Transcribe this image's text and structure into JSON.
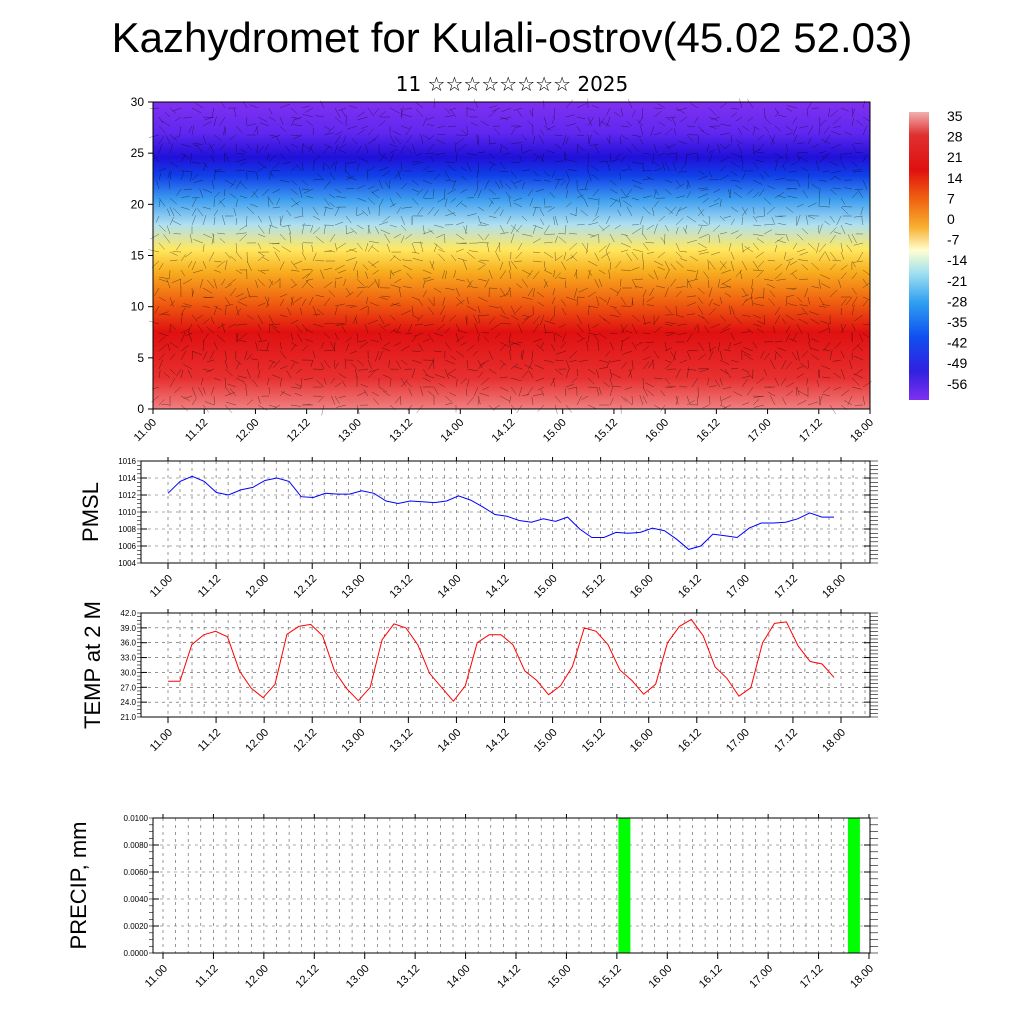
{
  "header": {
    "title": "Kazhydromet for Kulali-ostrov(45.02 52.03)",
    "subtitle": "11 ☆☆☆☆☆☆☆☆ 2025"
  },
  "colorbar": {
    "labels": [
      "35",
      "28",
      "21",
      "14",
      "7",
      "0",
      "-7",
      "-14",
      "-21",
      "-28",
      "-35",
      "-42",
      "-49",
      "-56"
    ],
    "colors_top_to_bottom": [
      "#f0a8a8",
      "#e04040",
      "#e01010",
      "#f03010",
      "#f06010",
      "#f8a020",
      "#ffe040",
      "#ffffd0",
      "#a0e0f0",
      "#30a8f0",
      "#1060f0",
      "#2020e0",
      "#4030f0",
      "#8030f0"
    ]
  },
  "chart_data": [
    {
      "type": "heatmap",
      "name": "vertical-profile",
      "ylim": [
        0,
        30
      ],
      "yticks": [
        0,
        5,
        10,
        15,
        20,
        25,
        30
      ],
      "x_ticks": [
        "11.00",
        "11.12",
        "12.00",
        "12.12",
        "13.00",
        "13.12",
        "14.00",
        "14.12",
        "15.00",
        "15.12",
        "16.00",
        "16.12",
        "17.00",
        "17.12",
        "18.00"
      ],
      "value_range": [
        -56,
        35
      ],
      "description_levels_bottom_to_top": [
        35,
        28,
        21,
        14,
        0,
        -14,
        -28,
        -56,
        -56
      ]
    },
    {
      "type": "line",
      "name": "pmsl",
      "ylabel": "PMSL",
      "ylim": [
        1004,
        1016
      ],
      "yticks": [
        1004,
        1006,
        1008,
        1010,
        1012,
        1014,
        1016
      ],
      "x_ticks": [
        "11.00",
        "11.12",
        "12.00",
        "12.12",
        "13.00",
        "13.12",
        "14.00",
        "14.12",
        "15.00",
        "15.12",
        "16.00",
        "16.12",
        "17.00",
        "17.12",
        "18.00"
      ],
      "color": "#0000ff",
      "values": [
        1012.2,
        1013.6,
        1014.2,
        1013.6,
        1012.3,
        1012.0,
        1012.6,
        1012.9,
        1013.7,
        1014.0,
        1013.6,
        1011.8,
        1011.7,
        1012.2,
        1012.1,
        1012.1,
        1012.5,
        1012.2,
        1011.3,
        1011.0,
        1011.3,
        1011.2,
        1011.1,
        1011.3,
        1011.9,
        1011.4,
        1010.6,
        1009.7,
        1009.5,
        1009.0,
        1008.8,
        1009.2,
        1008.9,
        1009.4,
        1008.0,
        1007.0,
        1007.0,
        1007.6,
        1007.5,
        1007.6,
        1008.1,
        1007.8,
        1006.8,
        1005.6,
        1006.0,
        1007.4,
        1007.2,
        1007.0,
        1008.1,
        1008.7,
        1008.7,
        1008.8,
        1009.2,
        1009.9,
        1009.4,
        1009.4
      ]
    },
    {
      "type": "line",
      "name": "temp",
      "ylabel": "TEMP at 2 M",
      "ylim": [
        21,
        42
      ],
      "yticks": [
        "21.0",
        "24.0",
        "27.0",
        "30.0",
        "33.0",
        "36.0",
        "39.0",
        "42.0"
      ],
      "x_ticks": [
        "11.00",
        "11.12",
        "12.00",
        "12.12",
        "13.00",
        "13.12",
        "14.00",
        "14.12",
        "15.00",
        "15.12",
        "16.00",
        "16.12",
        "17.00",
        "17.12",
        "18.00"
      ],
      "color": "#ff0000",
      "values": [
        28.2,
        28.2,
        35.6,
        37.6,
        38.3,
        37.2,
        30.3,
        26.8,
        24.9,
        27.6,
        37.7,
        39.3,
        39.7,
        37.4,
        30.3,
        26.8,
        24.3,
        27.0,
        36.6,
        39.8,
        39.0,
        35.6,
        29.8,
        27.0,
        24.2,
        27.3,
        36.0,
        37.6,
        37.6,
        35.6,
        30.3,
        28.4,
        25.5,
        27.3,
        31.2,
        39.0,
        38.3,
        35.6,
        30.5,
        28.4,
        25.6,
        27.6,
        36.0,
        39.3,
        40.7,
        37.4,
        31.1,
        28.8,
        25.2,
        26.9,
        36.0,
        39.9,
        40.2,
        35.3,
        32.2,
        31.7,
        29.0
      ]
    },
    {
      "type": "bar",
      "name": "precip",
      "ylabel": "PRECIP, mm",
      "ylim": [
        0,
        0.01
      ],
      "yticks": [
        "0.0000",
        "0.0020",
        "0.0040",
        "0.0060",
        "0.0080",
        "0.0100"
      ],
      "x_ticks": [
        "11.00",
        "11.12",
        "12.00",
        "12.12",
        "13.00",
        "13.12",
        "14.00",
        "14.12",
        "15.00",
        "15.12",
        "16.00",
        "16.12",
        "17.00",
        "17.12",
        "18.00"
      ],
      "color": "#00ff00",
      "bars": [
        {
          "x_index": 9.15,
          "value": 0.01
        },
        {
          "x_index": 13.7,
          "value": 0.01
        }
      ]
    }
  ]
}
